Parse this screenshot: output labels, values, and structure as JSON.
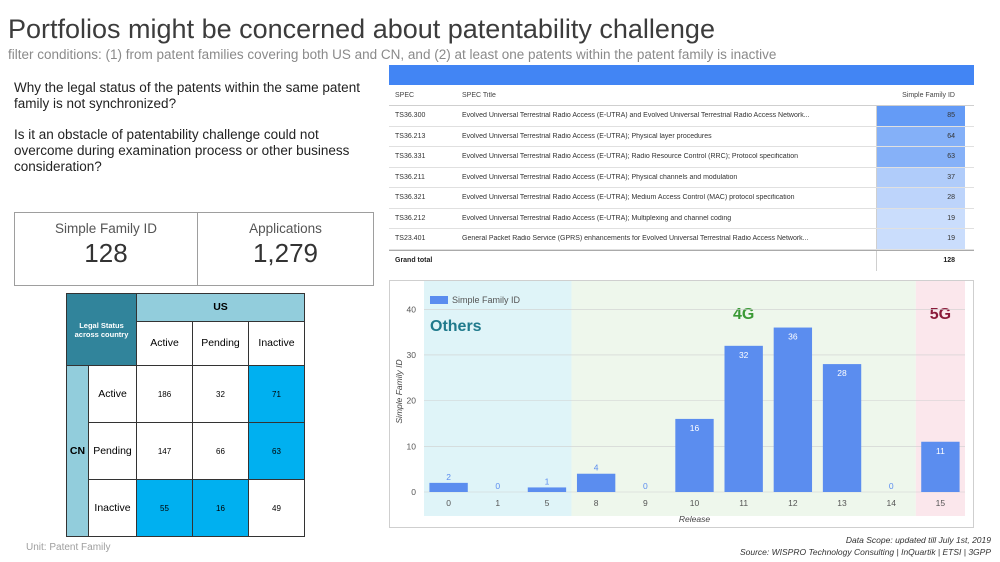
{
  "title": "Portfolios might be concerned about patentability challenge",
  "subtitle": "filter conditions: (1) from patent families covering both US and CN, and (2) at least one patents within the patent family is inactive",
  "questions": [
    "Why the legal status of the patents within the same patent family is not synchronized?",
    "Is it an obstacle of patentability challenge could not overcome during examination process or other business consideration?"
  ],
  "kpis": [
    {
      "label": "Simple Family ID",
      "value": "128"
    },
    {
      "label": "Applications",
      "value": "1,279"
    }
  ],
  "matrix": {
    "corner": "Legal Status across country",
    "col_group": "US",
    "row_group": "CN",
    "cols": [
      "Active",
      "Pending",
      "Inactive"
    ],
    "rows": [
      {
        "label": "Active",
        "values": [
          "186",
          "32",
          "71"
        ]
      },
      {
        "label": "Pending",
        "values": [
          "147",
          "66",
          "63"
        ]
      },
      {
        "label": "Inactive",
        "values": [
          "55",
          "16",
          "49"
        ]
      }
    ],
    "highlight_color": "#00b0f0",
    "unit": "Unit: Patent Family"
  },
  "spec_table": {
    "headers": [
      "SPEC",
      "SPEC Title",
      "Simple Family ID"
    ],
    "rows": [
      {
        "spec": "TS36.300",
        "title": "Evolved Universal Terrestrial Radio Access (E-UTRA) and Evolved Universal Terrestrial Radio Access Network...",
        "value": 85
      },
      {
        "spec": "TS36.213",
        "title": "Evolved Universal Terrestrial Radio Access (E-UTRA); Physical layer procedures",
        "value": 64
      },
      {
        "spec": "TS36.331",
        "title": "Evolved Universal Terrestrial Radio Access (E-UTRA); Radio Resource Control (RRC); Protocol specification",
        "value": 63
      },
      {
        "spec": "TS36.211",
        "title": "Evolved Universal Terrestrial Radio Access (E-UTRA); Physical channels and modulation",
        "value": 37
      },
      {
        "spec": "TS36.321",
        "title": "Evolved Universal Terrestrial Radio Access (E-UTRA); Medium Access Control (MAC) protocol specification",
        "value": 28
      },
      {
        "spec": "TS36.212",
        "title": "Evolved Universal Terrestrial Radio Access (E-UTRA); Multiplexing and channel coding",
        "value": 19
      },
      {
        "spec": "TS23.401",
        "title": "General Packet Radio Service (GPRS) enhancements for Evolved Universal Terrestrial Radio Access Network...",
        "value": 19
      }
    ],
    "total_label": "Grand total",
    "total_value": "128",
    "header_color": "#4285f4"
  },
  "chart_data": {
    "type": "bar",
    "categories": [
      "0",
      "1",
      "5",
      "8",
      "9",
      "10",
      "11",
      "12",
      "13",
      "14",
      "15"
    ],
    "series": [
      {
        "name": "Simple Family ID",
        "values": [
          2,
          0,
          1,
          4,
          0,
          16,
          32,
          36,
          28,
          0,
          11
        ]
      }
    ],
    "xlabel": "Release",
    "ylabel": "Simple Family ID",
    "ylim": [
      0,
      44
    ],
    "yticks": [
      0,
      10,
      20,
      30,
      40
    ],
    "legend": "top-left",
    "bar_color": "#5b8def",
    "regions": [
      {
        "label": "Others",
        "from": "0",
        "to": "5",
        "color": "#1f7a8c",
        "bg": "#dff4f8"
      },
      {
        "label": "4G",
        "from": "8",
        "to": "14",
        "color": "#3a9a35",
        "bg": "#eef7ec"
      },
      {
        "label": "5G",
        "from": "15",
        "to": "15",
        "color": "#8b1a3a",
        "bg": "#fbe7ec"
      }
    ]
  },
  "footer": {
    "line1": "Data Scope: updated till July 1st, 2019",
    "line2": "Source: WISPRO Technology Consulting | InQuartik | ETSI | 3GPP"
  }
}
